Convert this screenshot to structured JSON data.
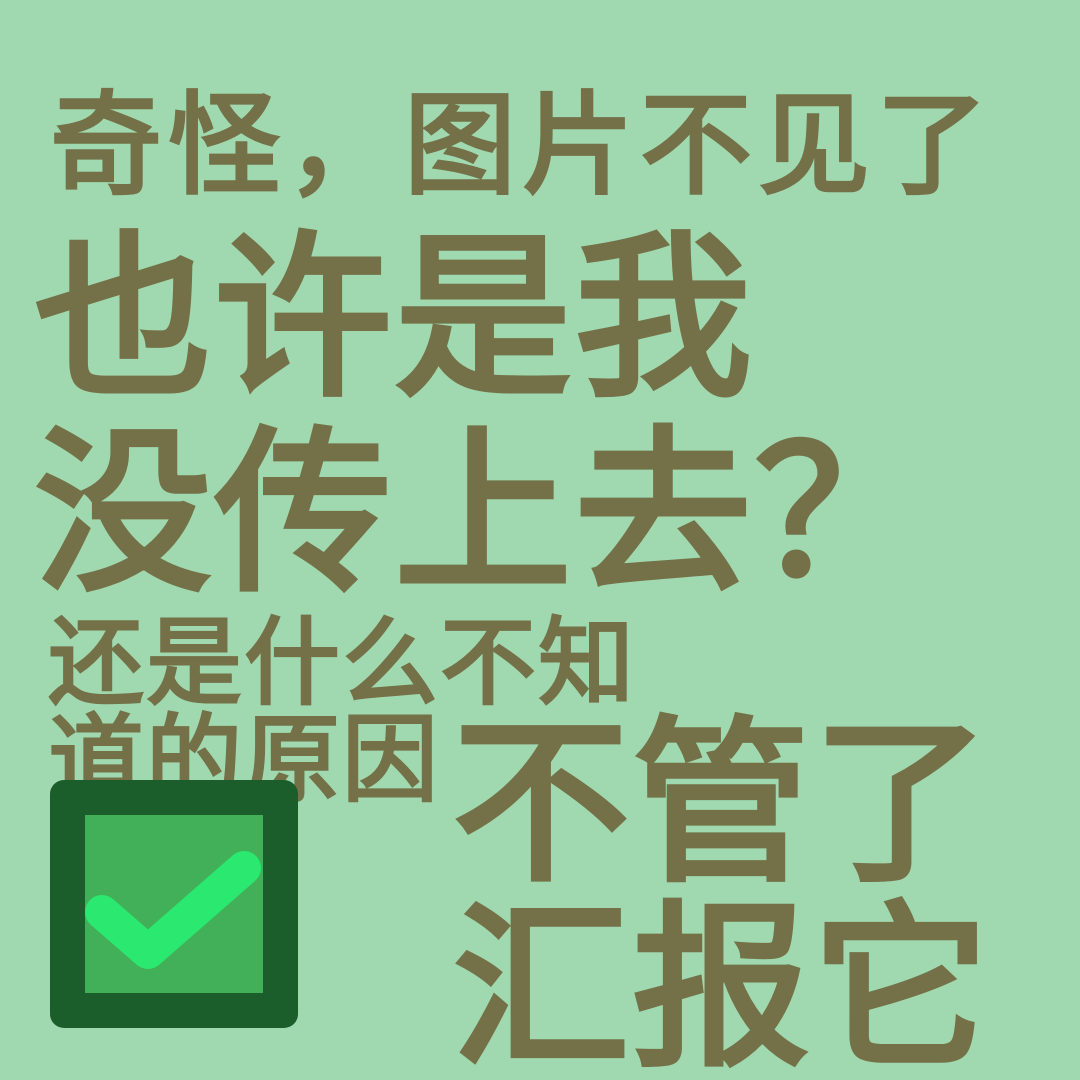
{
  "colors": {
    "background": "#a0d9af",
    "text": "#747148",
    "checkbox_border": "#1c5e2b",
    "checkbox_fill": "#41b059",
    "checkmark": "#2be870"
  },
  "lines": {
    "line1": "奇怪，图片不见了",
    "line2": "也许是我",
    "line3": "没传上去？",
    "line4": "还是什么不知",
    "line5": "道的原因",
    "line6": "不管了",
    "line7": "汇报它"
  },
  "checkbox": {
    "icon": "checkmark-icon",
    "checked": true
  }
}
